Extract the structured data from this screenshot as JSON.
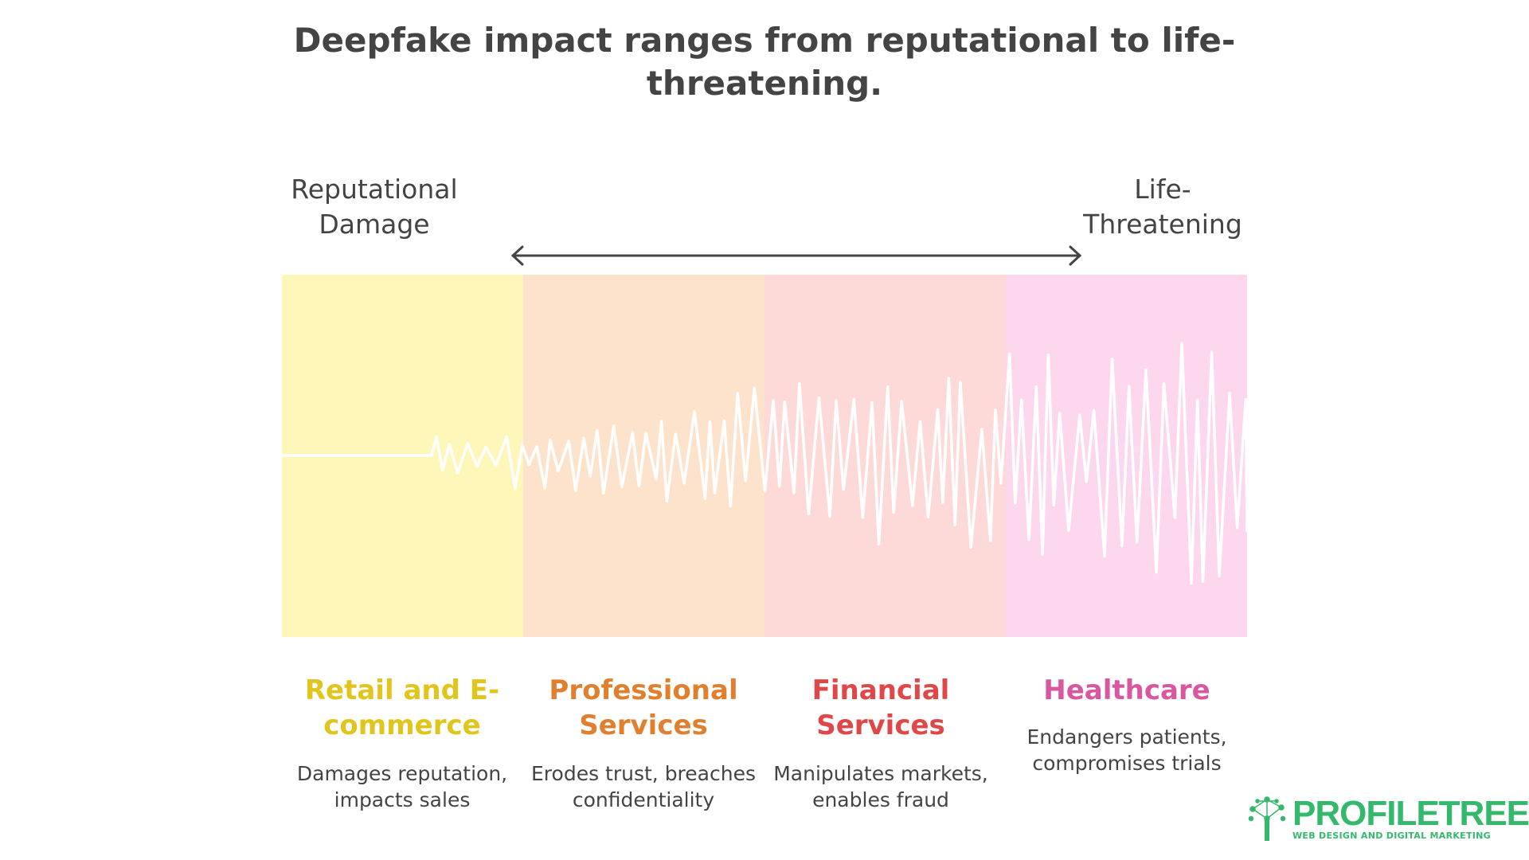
{
  "title": "Deepfake impact ranges from reputational to life-threatening.",
  "scale": {
    "left_label": "Reputational Damage",
    "right_label": "Life-Threatening"
  },
  "colors": {
    "panel_bg": [
      "#fef7b9",
      "#fde3cc",
      "#fdd9d8",
      "#fcd7ee"
    ],
    "accent": [
      "#e0c51c",
      "#e0802e",
      "#e04848",
      "#d9579f"
    ],
    "wave": "#ffffff",
    "logo": "#34b86c"
  },
  "categories": [
    {
      "title": "Retail and E-commerce",
      "description": "Damages reputation, impacts sales"
    },
    {
      "title": "Professional Services",
      "description": "Erodes trust, breaches confidentiality"
    },
    {
      "title": "Financial Services",
      "description": "Manipulates markets, enables fraud"
    },
    {
      "title": "Healthcare",
      "description": "Endangers patients, compromises trials"
    }
  ],
  "logo": {
    "name": "PROFILETREE",
    "tagline": "WEB DESIGN AND DIGITAL MARKETING"
  }
}
